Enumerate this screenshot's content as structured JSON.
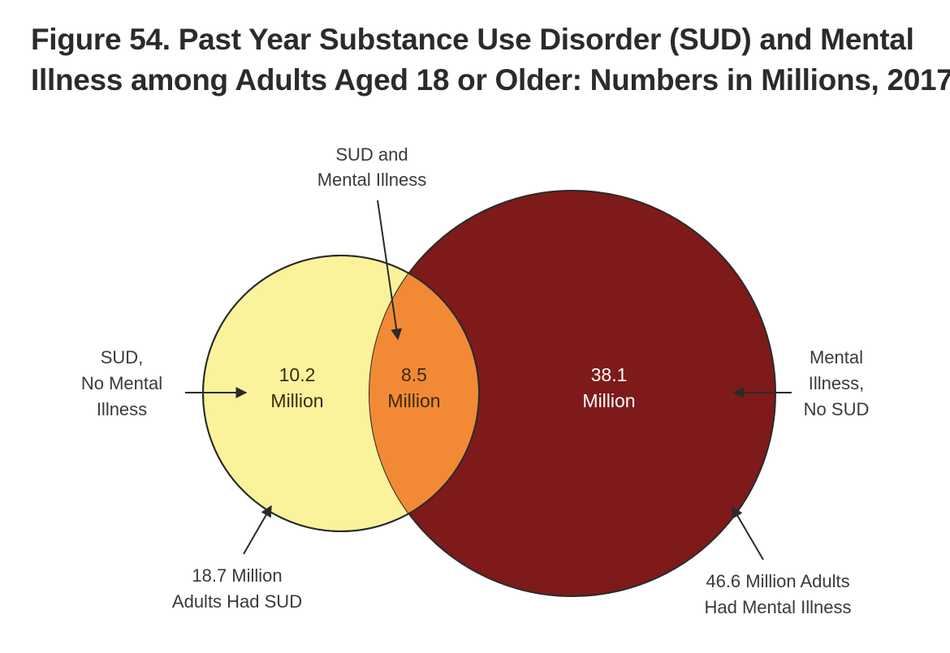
{
  "title": {
    "line1": "Figure 54. Past Year Substance Use Disorder (SUD) and Mental",
    "line2": "Illness among Adults Aged 18 or Older: Numbers in Millions, 2017"
  },
  "colors": {
    "sud_only": "#fbf39b",
    "overlap": "#f28a35",
    "mental_illness": "#7e1a1a",
    "text": "#3a3a3a"
  },
  "regions": {
    "sud_only": {
      "value_line1": "10.2",
      "value_line2": "Million",
      "value": 10.2
    },
    "overlap": {
      "value_line1": "8.5",
      "value_line2": "Million",
      "value": 8.5
    },
    "mental_only": {
      "value_line1": "38.1",
      "value_line2": "Million",
      "value": 38.1
    }
  },
  "callouts": {
    "overlap": {
      "line1": "SUD and",
      "line2": "Mental Illness"
    },
    "sud_no_mi": {
      "line1": "SUD,",
      "line2": "No Mental",
      "line3": "Illness"
    },
    "mi_no_sud": {
      "line1": "Mental",
      "line2": "Illness,",
      "line3": "No SUD"
    },
    "sud_total": {
      "line1": "18.7 Million",
      "line2": "Adults Had SUD",
      "value": 18.7
    },
    "mi_total": {
      "line1": "46.6 Million Adults",
      "line2": "Had Mental Illness",
      "value": 46.6
    }
  }
}
